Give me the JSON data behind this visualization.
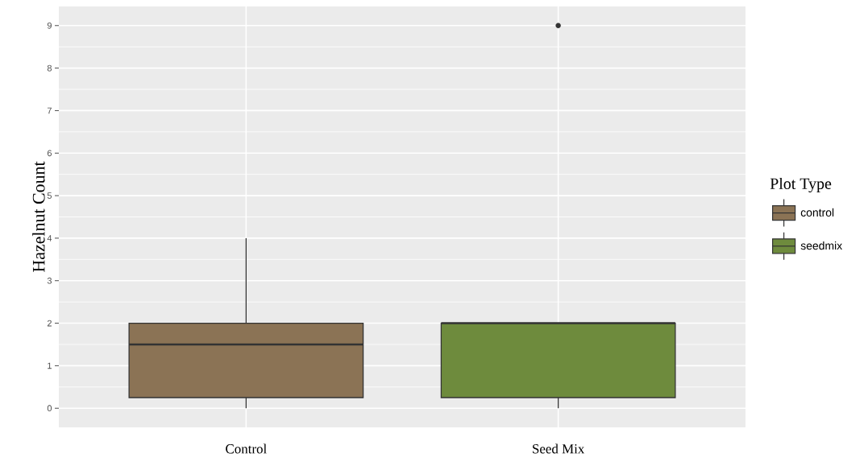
{
  "chart_data": {
    "type": "box",
    "ylabel": "Hazelnut Count",
    "legend_title": "Plot Type",
    "categories": [
      "Control",
      "Seed Mix"
    ],
    "ylim": [
      -0.45,
      9.45
    ],
    "yticks": [
      0,
      1,
      2,
      3,
      4,
      5,
      6,
      7,
      8,
      9
    ],
    "grid": true,
    "legend": "right",
    "series": [
      {
        "name": "control",
        "color": "#8b7355",
        "boxes": [
          {
            "low": 0,
            "q1": 0.25,
            "median": 1.5,
            "q3": 2,
            "high": 4
          },
          null
        ]
      },
      {
        "name": "seedmix",
        "color": "#6e8b3d",
        "boxes": [
          null,
          {
            "low": 0,
            "q1": 0.25,
            "median": 2,
            "q3": 2,
            "high": 2,
            "outliers": [
              9
            ]
          }
        ]
      }
    ]
  }
}
